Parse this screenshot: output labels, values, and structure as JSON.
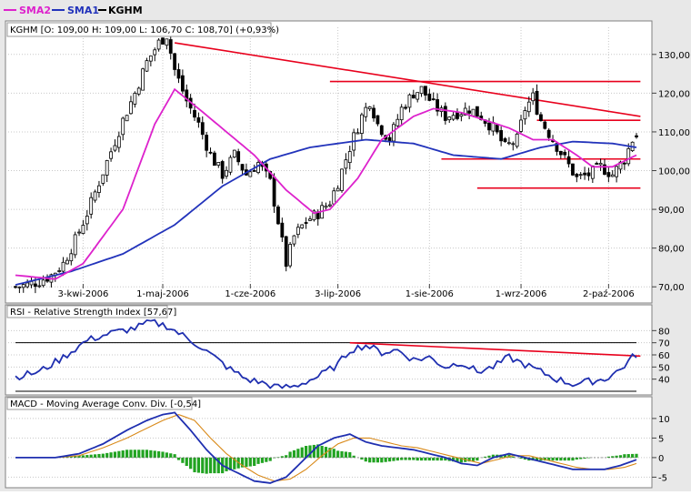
{
  "colors": {
    "price": "#000000",
    "sma1": "#2233bb",
    "sma2": "#dd22cc",
    "trendline": "#e8001c",
    "rsi": "#1f2fb0",
    "macd": "#1f2fb0",
    "signal": "#d98a1a",
    "histogram": "#21a321",
    "grid": "#c8c8c8",
    "refline": "#000000",
    "panel": "#ffffff"
  },
  "legend": [
    {
      "name": "SMA2",
      "color": "#dd22cc"
    },
    {
      "name": "SMA1",
      "color": "#2233bb"
    },
    {
      "name": "KGHM",
      "color": "#000000"
    }
  ],
  "chart_data": [
    {
      "type": "candlestick",
      "header": "KGHM [O: 109,00  H: 109,00  L: 106,70  C: 108,70] (+0,93%)",
      "ylim": [
        67,
        137
      ],
      "y_ticks": [
        "70,00",
        "80,00",
        "90,00",
        "100,00",
        "110,00",
        "120,00",
        "130,00"
      ],
      "y_tick_values": [
        70,
        80,
        90,
        100,
        110,
        120,
        130
      ],
      "x_tick_labels": [
        "3-kwi-2006",
        "1-maj-2006",
        "1-cze-2006",
        "3-lip-2006",
        "1-sie-2006",
        "1-wrz-2006",
        "2-paź-2006"
      ],
      "x_tick_index": [
        17,
        37,
        59,
        81,
        104,
        127,
        149
      ],
      "n_bars": 157,
      "price_anchors": [
        [
          0,
          70
        ],
        [
          3,
          70.5
        ],
        [
          6,
          71.5
        ],
        [
          9,
          73
        ],
        [
          12,
          76
        ],
        [
          15,
          82
        ],
        [
          18,
          89
        ],
        [
          21,
          97
        ],
        [
          24,
          105
        ],
        [
          27,
          113
        ],
        [
          30,
          120
        ],
        [
          33,
          128
        ],
        [
          36,
          133
        ],
        [
          38,
          135
        ],
        [
          40,
          126
        ],
        [
          43,
          118
        ],
        [
          46,
          112
        ],
        [
          49,
          104
        ],
        [
          52,
          99
        ],
        [
          55,
          104
        ],
        [
          58,
          99
        ],
        [
          61,
          102
        ],
        [
          64,
          97
        ],
        [
          66,
          87
        ],
        [
          68,
          76
        ],
        [
          70,
          83
        ],
        [
          73,
          87
        ],
        [
          76,
          89
        ],
        [
          79,
          92
        ],
        [
          81,
          97
        ],
        [
          84,
          106
        ],
        [
          87,
          114
        ],
        [
          89,
          118
        ],
        [
          91,
          112
        ],
        [
          94,
          108
        ],
        [
          97,
          116
        ],
        [
          100,
          120
        ],
        [
          102,
          121
        ],
        [
          105,
          117
        ],
        [
          108,
          114
        ],
        [
          111,
          115
        ],
        [
          114,
          116
        ],
        [
          117,
          114
        ],
        [
          120,
          111
        ],
        [
          123,
          106
        ],
        [
          126,
          108
        ],
        [
          128,
          116
        ],
        [
          130,
          119
        ],
        [
          132,
          113
        ],
        [
          135,
          108
        ],
        [
          138,
          103
        ],
        [
          141,
          98
        ],
        [
          144,
          99
        ],
        [
          147,
          101
        ],
        [
          150,
          99
        ],
        [
          153,
          103
        ],
        [
          155,
          108
        ],
        [
          156,
          108.7
        ]
      ],
      "series": [
        {
          "name": "KGHM"
        },
        {
          "name": "SMA1",
          "anchors": [
            [
              0,
              70.5
            ],
            [
              14,
              74
            ],
            [
              27,
              78.5
            ],
            [
              40,
              86
            ],
            [
              52,
              96
            ],
            [
              64,
              103
            ],
            [
              74,
              106
            ],
            [
              88,
              108
            ],
            [
              100,
              107
            ],
            [
              110,
              104
            ],
            [
              122,
              103
            ],
            [
              132,
              106
            ],
            [
              140,
              107.5
            ],
            [
              150,
              107
            ],
            [
              156,
              106
            ]
          ]
        },
        {
          "name": "SMA2",
          "anchors": [
            [
              0,
              73
            ],
            [
              10,
              72
            ],
            [
              17,
              76
            ],
            [
              27,
              90
            ],
            [
              35,
              112
            ],
            [
              40,
              121
            ],
            [
              46,
              116
            ],
            [
              53,
              110
            ],
            [
              60,
              104
            ],
            [
              68,
              95
            ],
            [
              75,
              89
            ],
            [
              79,
              90
            ],
            [
              86,
              98
            ],
            [
              92,
              108
            ],
            [
              100,
              114
            ],
            [
              105,
              116
            ],
            [
              112,
              115
            ],
            [
              118,
              113
            ],
            [
              124,
              111
            ],
            [
              130,
              108
            ],
            [
              135,
              108
            ],
            [
              141,
              104
            ],
            [
              145,
              101
            ],
            [
              150,
              101
            ],
            [
              154,
              103
            ],
            [
              156,
              104
            ]
          ]
        }
      ],
      "trendlines": [
        {
          "from": [
            40,
            133
          ],
          "to": [
            157,
            114
          ]
        },
        {
          "from": [
            79,
            123
          ],
          "to": [
            157,
            123
          ]
        },
        {
          "from": [
            131,
            113
          ],
          "to": [
            157,
            113
          ]
        },
        {
          "from": [
            107,
            103
          ],
          "to": [
            157,
            103
          ]
        },
        {
          "from": [
            116,
            95.5
          ],
          "to": [
            157,
            95.5
          ]
        }
      ]
    },
    {
      "type": "line",
      "title": "RSI - Relative Strength Index [57,67]",
      "ylim": [
        30,
        90
      ],
      "y_ticks": [
        "40",
        "50",
        "60",
        "70",
        "80"
      ],
      "y_tick_values": [
        40,
        50,
        60,
        70,
        80
      ],
      "reference_lines": [
        30,
        70
      ],
      "series": [
        {
          "name": "RSI",
          "anchors": [
            [
              0,
              42
            ],
            [
              6,
              46
            ],
            [
              12,
              58
            ],
            [
              18,
              72
            ],
            [
              24,
              78
            ],
            [
              30,
              82
            ],
            [
              34,
              87
            ],
            [
              38,
              84
            ],
            [
              42,
              76
            ],
            [
              46,
              68
            ],
            [
              50,
              58
            ],
            [
              54,
              48
            ],
            [
              58,
              40
            ],
            [
              62,
              37
            ],
            [
              66,
              33
            ],
            [
              70,
              34
            ],
            [
              76,
              42
            ],
            [
              81,
              52
            ],
            [
              84,
              64
            ],
            [
              88,
              68
            ],
            [
              92,
              62
            ],
            [
              96,
              64
            ],
            [
              100,
              56
            ],
            [
              104,
              58
            ],
            [
              108,
              50
            ],
            [
              112,
              54
            ],
            [
              116,
              46
            ],
            [
              120,
              50
            ],
            [
              124,
              58
            ],
            [
              128,
              52
            ],
            [
              132,
              46
            ],
            [
              136,
              40
            ],
            [
              140,
              36
            ],
            [
              144,
              38
            ],
            [
              148,
              40
            ],
            [
              152,
              48
            ],
            [
              155,
              58
            ],
            [
              156,
              57.67
            ]
          ]
        }
      ],
      "trendlines": [
        {
          "from": [
            84,
            70
          ],
          "to": [
            157,
            59
          ]
        }
      ]
    },
    {
      "type": "line+bar",
      "title": "MACD - Moving Average Conv. Div. [-0,54]",
      "ylim": [
        -7,
        13
      ],
      "y_ticks": [
        "-5",
        "0",
        "5",
        "10"
      ],
      "y_tick_values": [
        -5,
        0,
        5,
        10
      ],
      "series": [
        {
          "name": "MACD",
          "anchors": [
            [
              0,
              0
            ],
            [
              10,
              0
            ],
            [
              16,
              1
            ],
            [
              22,
              3.5
            ],
            [
              28,
              7
            ],
            [
              33,
              9.5
            ],
            [
              37,
              11
            ],
            [
              40,
              11.5
            ],
            [
              44,
              7
            ],
            [
              48,
              2
            ],
            [
              52,
              -2
            ],
            [
              56,
              -4
            ],
            [
              60,
              -6
            ],
            [
              64,
              -6.5
            ],
            [
              68,
              -5
            ],
            [
              72,
              -1
            ],
            [
              76,
              3
            ],
            [
              80,
              5
            ],
            [
              84,
              6
            ],
            [
              88,
              4
            ],
            [
              92,
              3
            ],
            [
              96,
              2.5
            ],
            [
              100,
              2
            ],
            [
              104,
              1
            ],
            [
              108,
              0
            ],
            [
              112,
              -1.5
            ],
            [
              116,
              -2
            ],
            [
              120,
              0
            ],
            [
              124,
              1
            ],
            [
              128,
              0
            ],
            [
              132,
              -1
            ],
            [
              136,
              -2
            ],
            [
              140,
              -3
            ],
            [
              144,
              -3
            ],
            [
              148,
              -3
            ],
            [
              152,
              -2
            ],
            [
              156,
              -0.54
            ]
          ]
        },
        {
          "name": "Signal",
          "anchors": [
            [
              0,
              0
            ],
            [
              10,
              0
            ],
            [
              16,
              0.5
            ],
            [
              22,
              2.5
            ],
            [
              28,
              5
            ],
            [
              33,
              7.5
            ],
            [
              37,
              9.5
            ],
            [
              41,
              11
            ],
            [
              45,
              9.5
            ],
            [
              49,
              5
            ],
            [
              53,
              1
            ],
            [
              57,
              -2
            ],
            [
              61,
              -4.5
            ],
            [
              65,
              -6
            ],
            [
              69,
              -5.5
            ],
            [
              73,
              -3
            ],
            [
              77,
              0.5
            ],
            [
              81,
              3.5
            ],
            [
              85,
              5
            ],
            [
              89,
              5
            ],
            [
              93,
              4
            ],
            [
              97,
              3
            ],
            [
              101,
              2.5
            ],
            [
              105,
              1.5
            ],
            [
              109,
              0.5
            ],
            [
              113,
              -0.5
            ],
            [
              117,
              -1.5
            ],
            [
              121,
              -0.5
            ],
            [
              125,
              0.5
            ],
            [
              129,
              0.5
            ],
            [
              133,
              -0.5
            ],
            [
              137,
              -1.5
            ],
            [
              141,
              -2.5
            ],
            [
              145,
              -3
            ],
            [
              149,
              -3
            ],
            [
              153,
              -2.5
            ],
            [
              156,
              -1.5
            ]
          ]
        },
        {
          "name": "Histogram",
          "kind": "bar"
        }
      ]
    }
  ]
}
